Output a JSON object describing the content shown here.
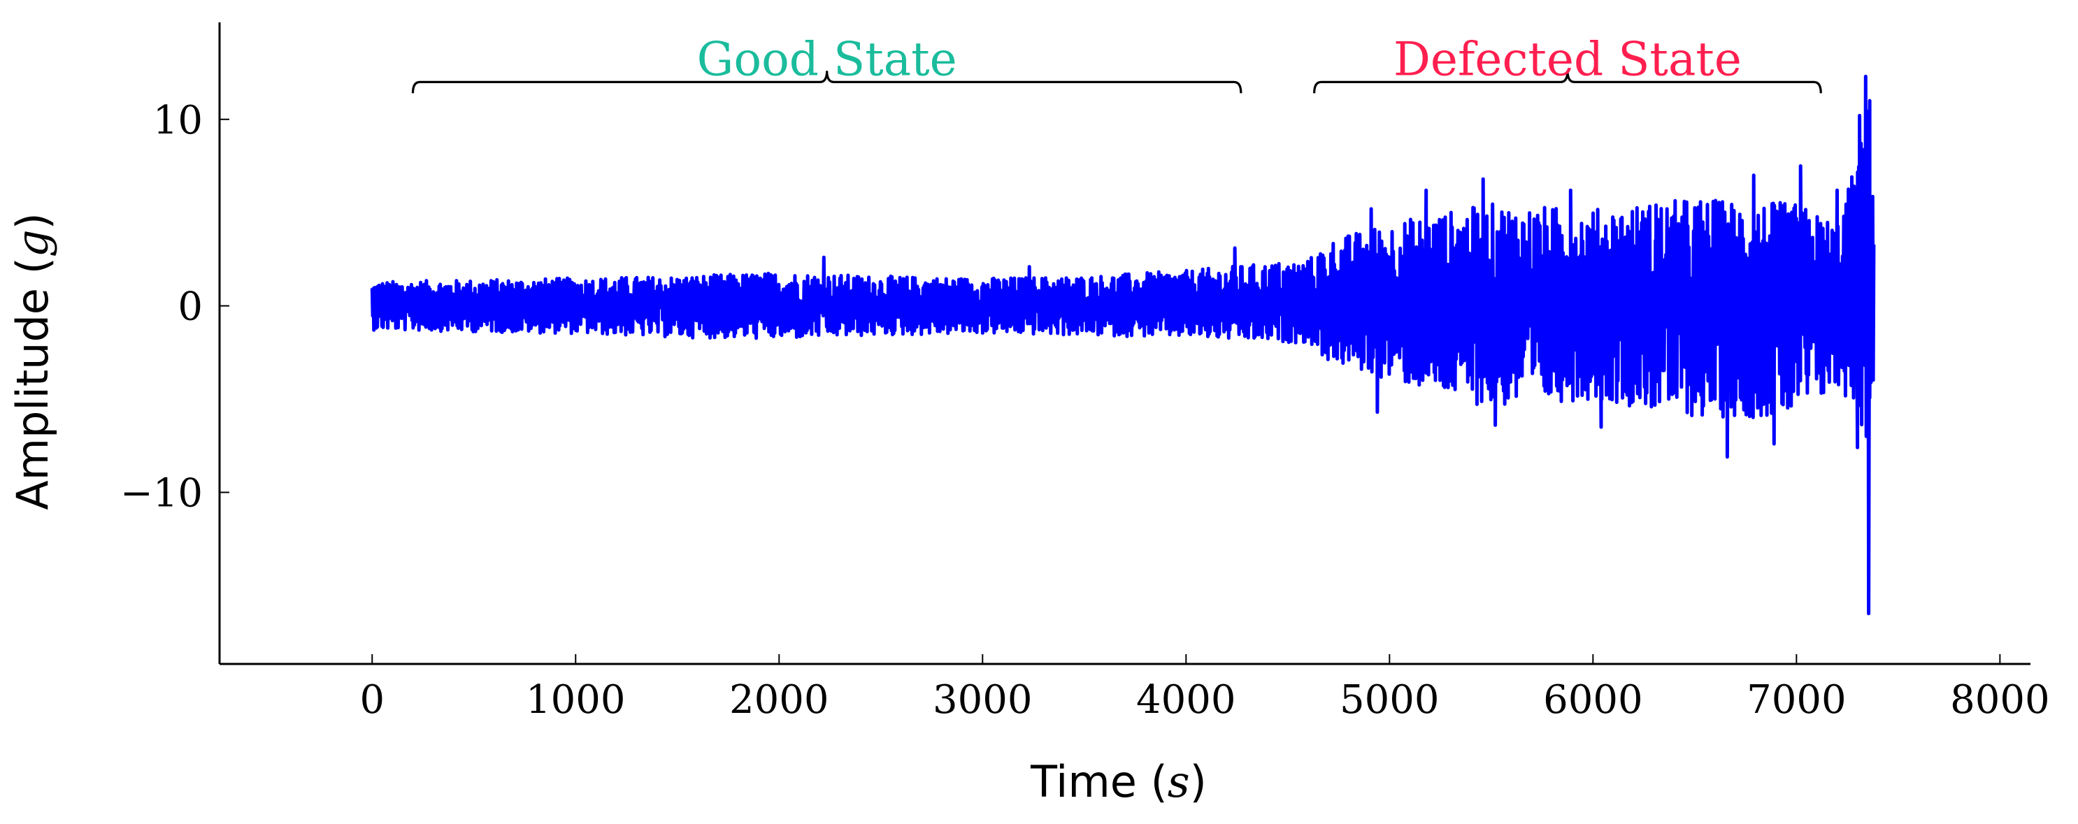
{
  "chart_data": {
    "type": "line",
    "title": "",
    "xlabel": "Time",
    "xlabel_unit": "s",
    "ylabel": "Amplitude",
    "ylabel_unit": "g",
    "xlim": [
      -750,
      8150
    ],
    "ylim": [
      -19.2,
      15.2
    ],
    "xticks": [
      0,
      1000,
      2000,
      3000,
      4000,
      5000,
      6000,
      7000,
      8000
    ],
    "yticks": [
      -10,
      0,
      10
    ],
    "ytick_labels": [
      "−10",
      "0",
      "10"
    ],
    "grid": false,
    "legend": "none",
    "colors": {
      "series": "#0000ff",
      "good": "#1abc9c",
      "defect": "#ff1f4f"
    },
    "series": [
      {
        "envelope_x": [
          0,
          500,
          1000,
          1500,
          2000,
          2500,
          3000,
          3500,
          4000,
          4300,
          4600,
          4700,
          5000,
          5500,
          6000,
          6500,
          7000,
          7200,
          7300,
          7350,
          7380
        ],
        "envelope_upper": [
          1.3,
          1.4,
          1.5,
          1.6,
          1.8,
          1.6,
          1.5,
          1.6,
          1.9,
          2.2,
          2.5,
          3.5,
          4.5,
          5.5,
          5.2,
          5.8,
          5.5,
          4.5,
          8.0,
          11.0,
          7.0
        ],
        "envelope_lower": [
          -1.3,
          -1.4,
          -1.5,
          -1.7,
          -1.8,
          -1.6,
          -1.5,
          -1.6,
          -1.7,
          -1.9,
          -2.0,
          -3.0,
          -4.0,
          -5.5,
          -5.0,
          -6.0,
          -6.0,
          -4.5,
          -5.5,
          -8.0,
          -5.0
        ],
        "peaks": [
          {
            "x": 2220,
            "y": 2.6
          },
          {
            "x": 3230,
            "y": 2.1
          },
          {
            "x": 4240,
            "y": 3.1
          },
          {
            "x": 4910,
            "y": 5.2
          },
          {
            "x": 5180,
            "y": 6.2
          },
          {
            "x": 5460,
            "y": 6.8
          },
          {
            "x": 5890,
            "y": 6.2
          },
          {
            "x": 6310,
            "y": 5.4
          },
          {
            "x": 6790,
            "y": 7.0
          },
          {
            "x": 7020,
            "y": 7.5
          },
          {
            "x": 7200,
            "y": 6.2
          },
          {
            "x": 7310,
            "y": 10.2
          },
          {
            "x": 7340,
            "y": 12.3
          },
          {
            "x": 7360,
            "y": 11.0
          },
          {
            "x": 4940,
            "y": -5.7
          },
          {
            "x": 5520,
            "y": -6.4
          },
          {
            "x": 6040,
            "y": -6.5
          },
          {
            "x": 6660,
            "y": -8.1
          },
          {
            "x": 6890,
            "y": -7.4
          },
          {
            "x": 7300,
            "y": -7.6
          },
          {
            "x": 7355,
            "y": -16.5
          }
        ]
      }
    ],
    "annotations": [
      {
        "label": "Good State",
        "x_start": 200,
        "x_end": 4270
      },
      {
        "label": "Defected State",
        "x_start": 4630,
        "x_end": 7120
      }
    ]
  }
}
